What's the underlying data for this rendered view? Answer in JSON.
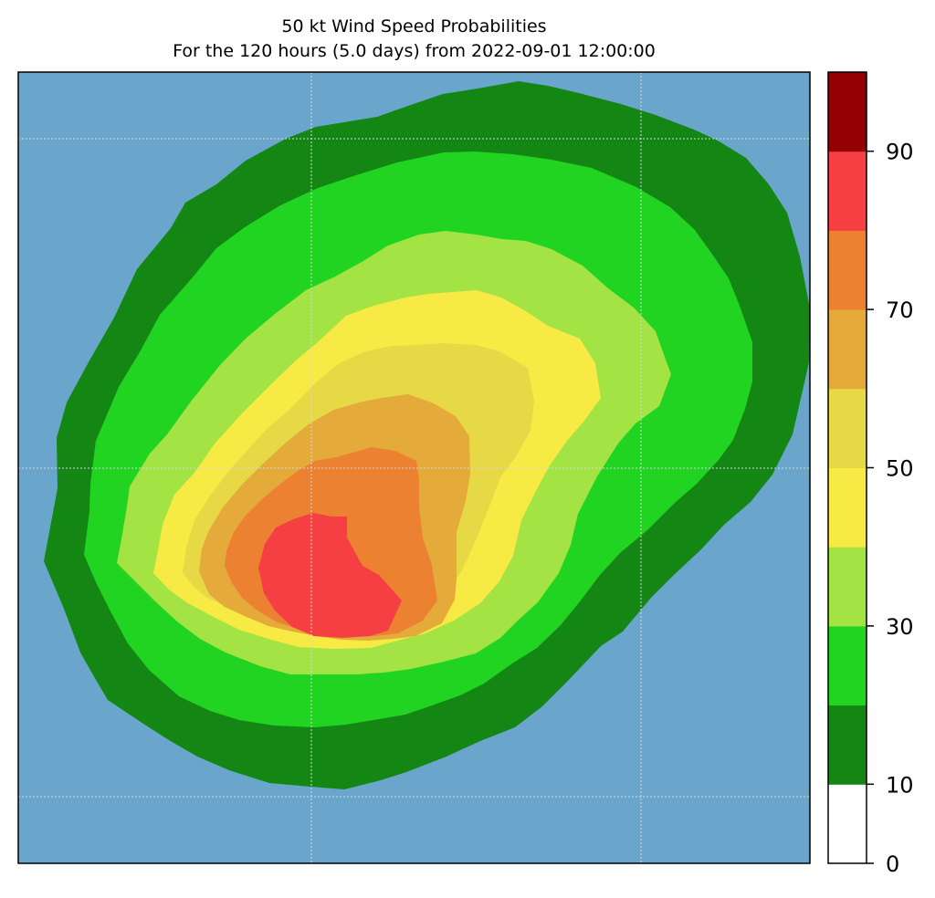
{
  "chart_data": {
    "type": "heatmap",
    "title": "50 kt Wind Speed Probabilities",
    "subtitle": "For the 120 hours (5.0 days) from 2022-09-01 12:00:00",
    "xlabel": "",
    "ylabel": "",
    "grid": true,
    "background_color": "#6aa6cc",
    "colorbar": {
      "range": [
        0,
        100
      ],
      "levels": [
        0,
        10,
        20,
        30,
        40,
        50,
        60,
        70,
        80,
        90,
        100
      ],
      "tick_values": [
        0,
        10,
        30,
        50,
        70,
        90
      ],
      "tick_labels": [
        "0",
        "10",
        "30",
        "50",
        "70",
        "90"
      ],
      "colors": [
        "#ffffff",
        "#148614",
        "#22d422",
        "#a3e344",
        "#f7ea45",
        "#e6d945",
        "#e4aa3a",
        "#ec8132",
        "#f53f43",
        "#930104",
        "#7f27d9"
      ]
    },
    "contours": [
      {
        "min_percent": 5,
        "color": "#148614"
      },
      {
        "min_percent": 10,
        "color": "#22d422"
      },
      {
        "min_percent": 20,
        "color": "#a3e344"
      },
      {
        "min_percent": 30,
        "color": "#f7ea45"
      },
      {
        "min_percent": 40,
        "color": "#e6d945"
      },
      {
        "min_percent": 50,
        "color": "#e4aa3a"
      },
      {
        "min_percent": 60,
        "color": "#ec8132"
      },
      {
        "min_percent": 70,
        "color": "#f53f43"
      }
    ]
  }
}
